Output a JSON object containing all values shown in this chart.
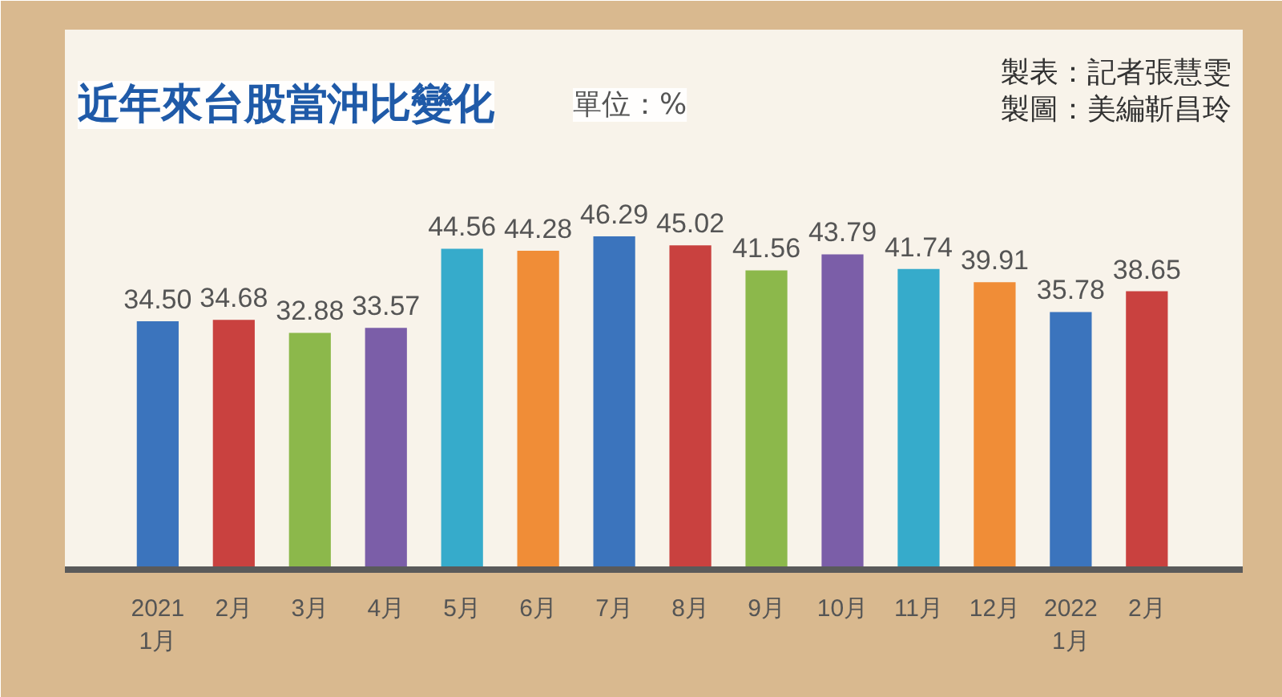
{
  "chart_data": {
    "type": "bar",
    "title": "近年來台股當沖比變化",
    "subtitle": "單位：%",
    "categories": [
      "2021\n1月",
      "2月",
      "3月",
      "4月",
      "5月",
      "6月",
      "7月",
      "8月",
      "9月",
      "10月",
      "11月",
      "12月",
      "2022\n1月",
      "2月"
    ],
    "values": [
      34.5,
      34.68,
      32.88,
      33.57,
      44.56,
      44.28,
      46.29,
      45.02,
      41.56,
      43.79,
      41.74,
      39.91,
      35.78,
      38.65
    ],
    "colors": [
      "#3b74bd",
      "#c9413f",
      "#8cb84b",
      "#7b5ea8",
      "#36abcb",
      "#f08d37",
      "#3b74bd",
      "#c9413f",
      "#8cb84b",
      "#7b5ea8",
      "#36abcb",
      "#f08d37",
      "#3b74bd",
      "#c9413f"
    ],
    "value_labels": [
      "34.50",
      "34.68",
      "32.88",
      "33.57",
      "44.56",
      "44.28",
      "46.29",
      "45.02",
      "41.56",
      "43.79",
      "41.74",
      "39.91",
      "35.78",
      "38.65"
    ],
    "annotations": [
      "製表：記者張慧雯",
      "製圖：美編靳昌玲"
    ]
  }
}
